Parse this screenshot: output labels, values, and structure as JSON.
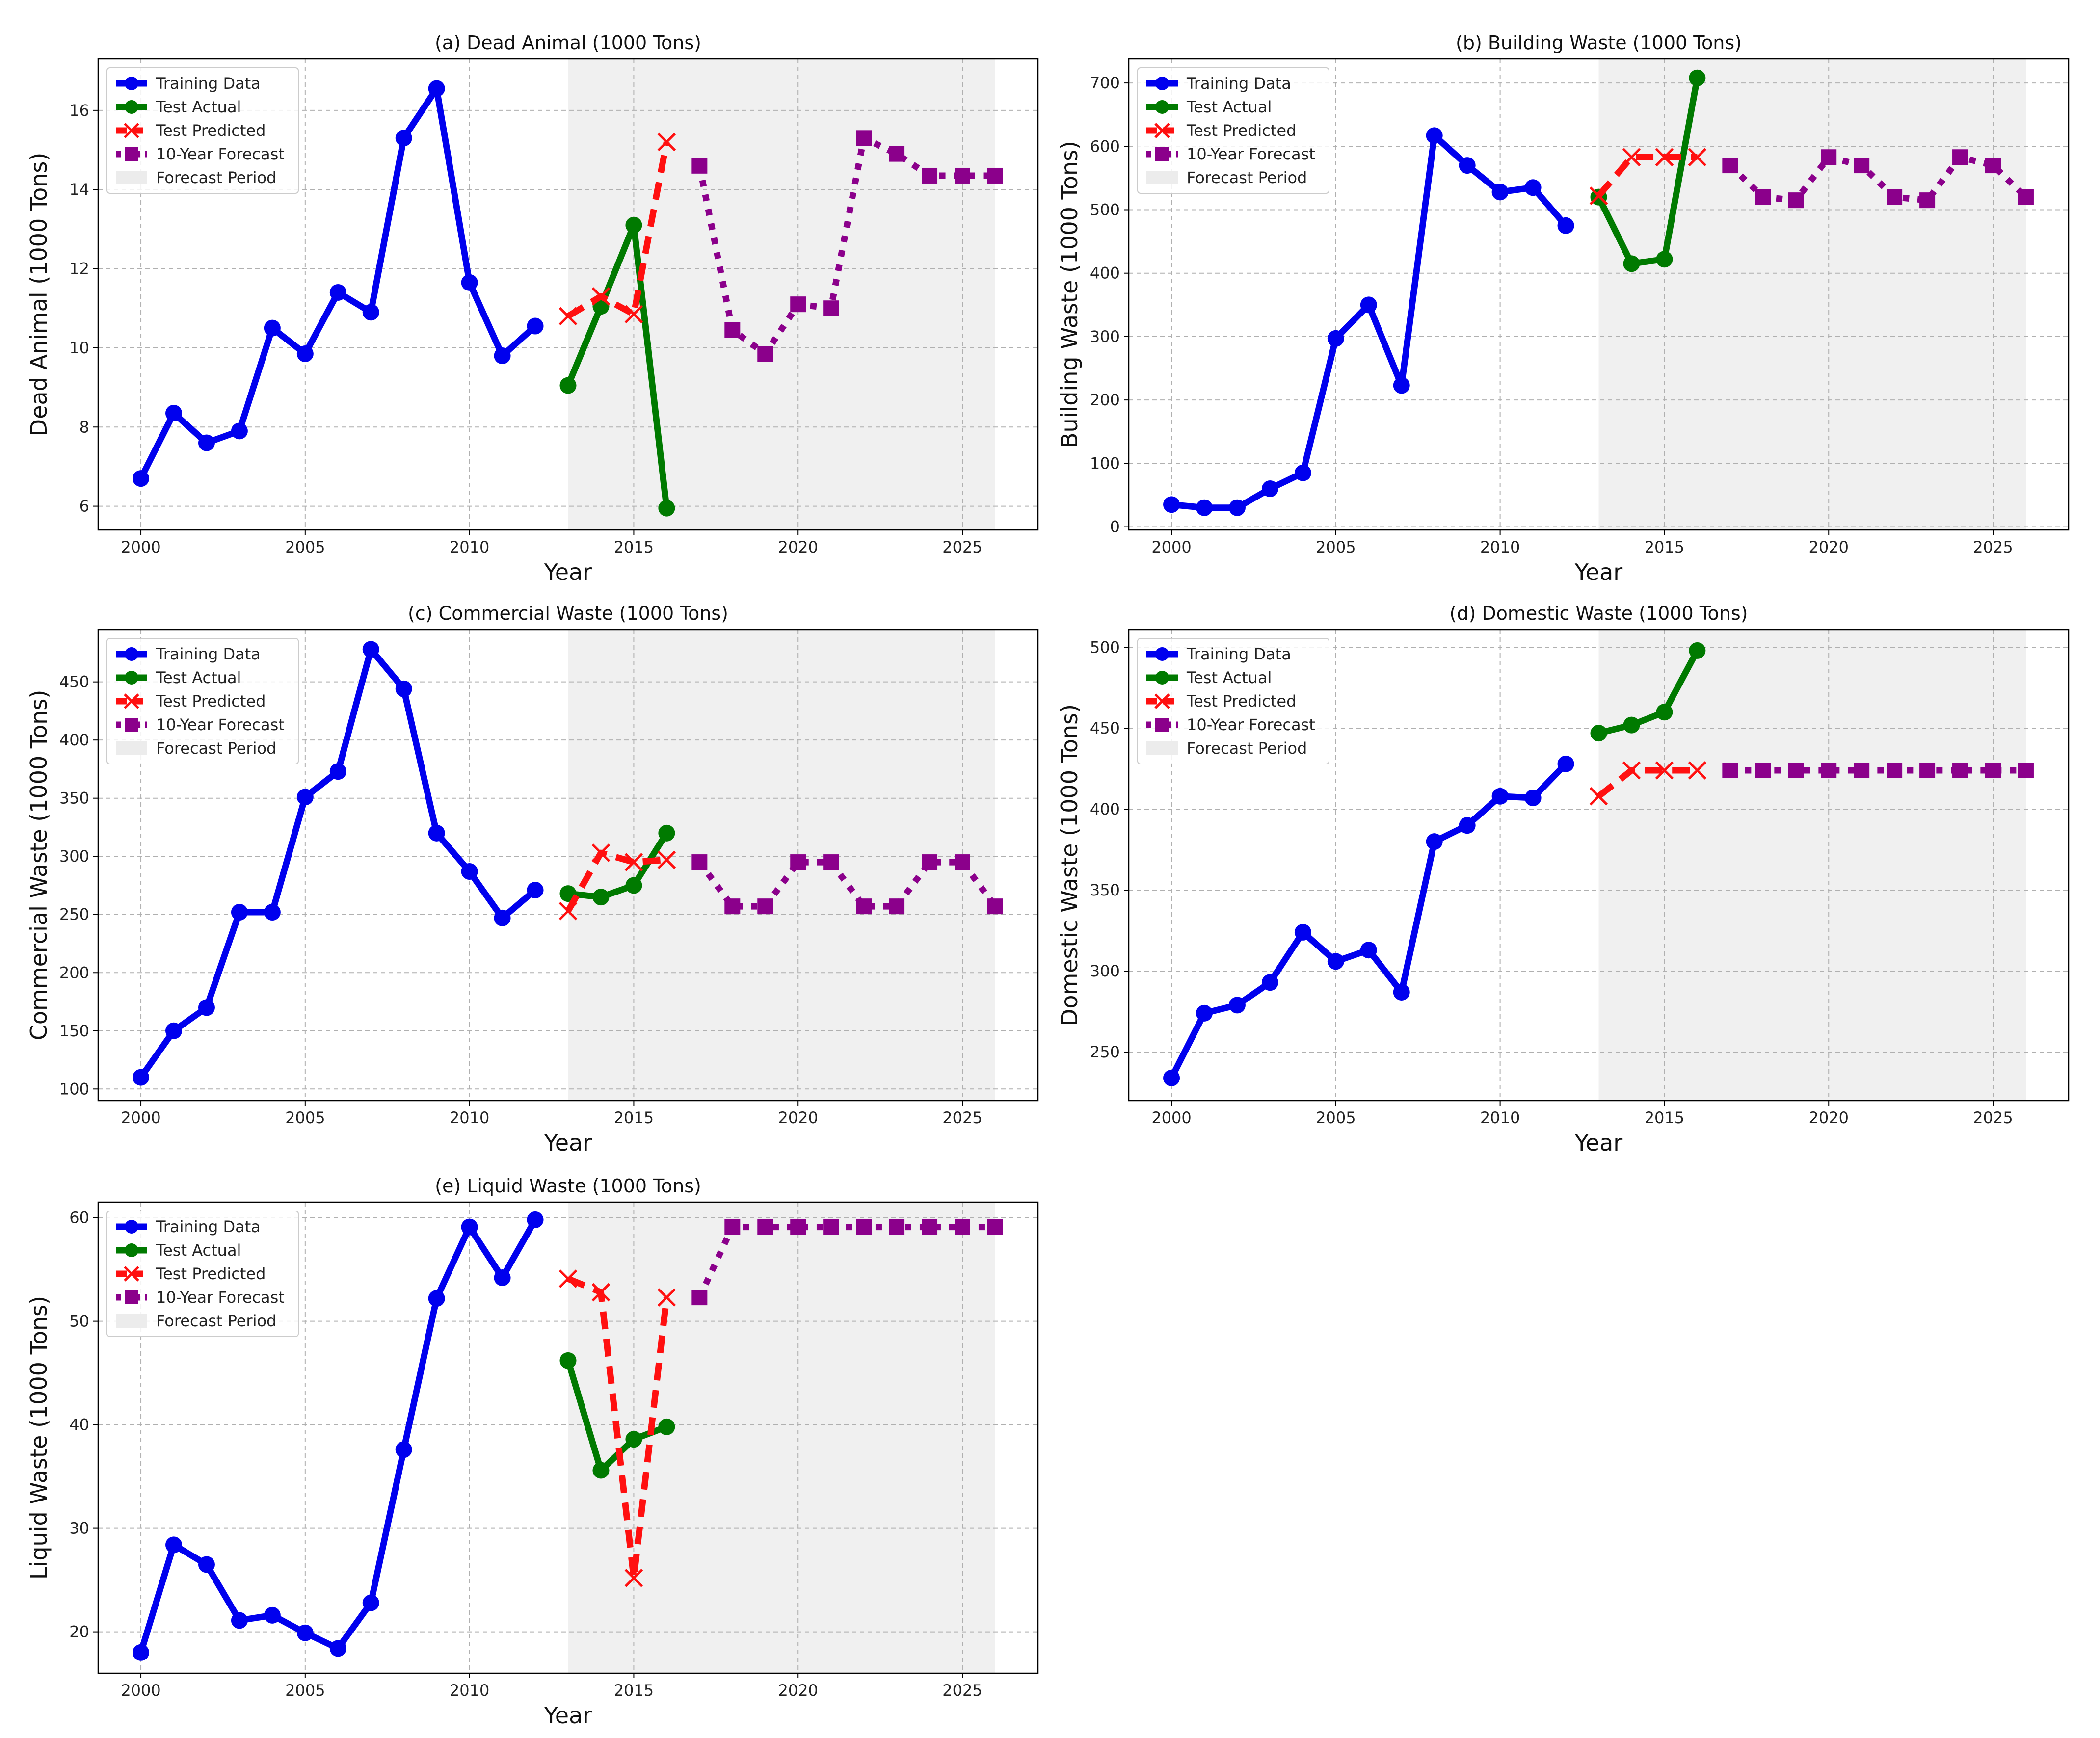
{
  "chart_data": [
    {
      "type": "line",
      "title": "(a) Dead Animal (1000 Tons)",
      "xlabel": "Year",
      "ylabel": "Dead Animal (1000 Tons)",
      "xlim": [
        1998.7,
        2027.3
      ],
      "ylim": [
        5.4,
        17.3
      ],
      "xticks": [
        2000,
        2005,
        2010,
        2015,
        2020,
        2025
      ],
      "yticks": [
        6,
        8,
        10,
        12,
        14,
        16
      ],
      "forecast_period": [
        2013,
        2026
      ],
      "series": [
        {
          "name": "Training Data",
          "x": [
            2000,
            2001,
            2002,
            2003,
            2004,
            2005,
            2006,
            2007,
            2008,
            2009,
            2010,
            2011,
            2012
          ],
          "values": [
            6.7,
            8.35,
            7.6,
            7.9,
            10.5,
            9.85,
            11.4,
            10.9,
            15.3,
            16.55,
            11.65,
            9.8,
            10.55
          ]
        },
        {
          "name": "Test Actual",
          "x": [
            2013,
            2014,
            2015,
            2016
          ],
          "values": [
            9.05,
            11.05,
            13.1,
            5.95
          ]
        },
        {
          "name": "Test Predicted",
          "x": [
            2013,
            2014,
            2015,
            2016
          ],
          "values": [
            10.8,
            11.3,
            10.85,
            15.2
          ]
        },
        {
          "name": "10-Year Forecast",
          "x": [
            2017,
            2018,
            2019,
            2020,
            2021,
            2022,
            2023,
            2024,
            2025,
            2026
          ],
          "values": [
            14.6,
            10.45,
            9.85,
            11.1,
            11.0,
            15.3,
            14.9,
            14.35,
            14.35,
            14.35
          ]
        }
      ],
      "legend": [
        "Training Data",
        "Test Actual",
        "Test Predicted",
        "10-Year Forecast",
        "Forecast Period"
      ]
    },
    {
      "type": "line",
      "title": "(b) Building Waste (1000 Tons)",
      "xlabel": "Year",
      "ylabel": "Building Waste (1000 Tons)",
      "xlim": [
        1998.7,
        2027.3
      ],
      "ylim": [
        -5,
        738
      ],
      "xticks": [
        2000,
        2005,
        2010,
        2015,
        2020,
        2025
      ],
      "yticks": [
        0,
        100,
        200,
        300,
        400,
        500,
        600,
        700
      ],
      "forecast_period": [
        2013,
        2026
      ],
      "series": [
        {
          "name": "Training Data",
          "x": [
            2000,
            2001,
            2002,
            2003,
            2004,
            2005,
            2006,
            2007,
            2008,
            2009,
            2010,
            2011,
            2012
          ],
          "values": [
            35,
            30,
            30,
            60,
            85,
            297,
            350,
            223,
            617,
            570,
            528,
            535,
            475
          ]
        },
        {
          "name": "Test Actual",
          "x": [
            2013,
            2014,
            2015,
            2016
          ],
          "values": [
            520,
            415,
            422,
            708
          ]
        },
        {
          "name": "Test Predicted",
          "x": [
            2013,
            2014,
            2015,
            2016
          ],
          "values": [
            522,
            583,
            583,
            583
          ]
        },
        {
          "name": "10-Year Forecast",
          "x": [
            2017,
            2018,
            2019,
            2020,
            2021,
            2022,
            2023,
            2024,
            2025,
            2026
          ],
          "values": [
            570,
            520,
            515,
            583,
            570,
            520,
            515,
            583,
            570,
            520
          ]
        }
      ],
      "legend": [
        "Training Data",
        "Test Actual",
        "Test Predicted",
        "10-Year Forecast",
        "Forecast Period"
      ]
    },
    {
      "type": "line",
      "title": "(c) Commercial Waste (1000 Tons)",
      "xlabel": "Year",
      "ylabel": "Commercial Waste (1000 Tons)",
      "xlim": [
        1998.7,
        2027.3
      ],
      "ylim": [
        90,
        495
      ],
      "xticks": [
        2000,
        2005,
        2010,
        2015,
        2020,
        2025
      ],
      "yticks": [
        100,
        150,
        200,
        250,
        300,
        350,
        400,
        450
      ],
      "forecast_period": [
        2013,
        2026
      ],
      "series": [
        {
          "name": "Training Data",
          "x": [
            2000,
            2001,
            2002,
            2003,
            2004,
            2005,
            2006,
            2007,
            2008,
            2009,
            2010,
            2011,
            2012
          ],
          "values": [
            110,
            150,
            170,
            252,
            252,
            351,
            373,
            478,
            444,
            320,
            287,
            247,
            271
          ]
        },
        {
          "name": "Test Actual",
          "x": [
            2013,
            2014,
            2015,
            2016
          ],
          "values": [
            268,
            265,
            275,
            320
          ]
        },
        {
          "name": "Test Predicted",
          "x": [
            2013,
            2014,
            2015,
            2016
          ],
          "values": [
            253,
            303,
            295,
            297
          ]
        },
        {
          "name": "10-Year Forecast",
          "x": [
            2017,
            2018,
            2019,
            2020,
            2021,
            2022,
            2023,
            2024,
            2025,
            2026
          ],
          "values": [
            295,
            257,
            257,
            295,
            295,
            257,
            257,
            295,
            295,
            257
          ]
        }
      ],
      "legend": [
        "Training Data",
        "Test Actual",
        "Test Predicted",
        "10-Year Forecast",
        "Forecast Period"
      ]
    },
    {
      "type": "line",
      "title": "(d) Domestic Waste (1000 Tons)",
      "xlabel": "Year",
      "ylabel": "Domestic Waste (1000 Tons)",
      "xlim": [
        1998.7,
        2027.3
      ],
      "ylim": [
        220,
        511
      ],
      "xticks": [
        2000,
        2005,
        2010,
        2015,
        2020,
        2025
      ],
      "yticks": [
        250,
        300,
        350,
        400,
        450,
        500
      ],
      "forecast_period": [
        2013,
        2026
      ],
      "series": [
        {
          "name": "Training Data",
          "x": [
            2000,
            2001,
            2002,
            2003,
            2004,
            2005,
            2006,
            2007,
            2008,
            2009,
            2010,
            2011,
            2012
          ],
          "values": [
            234,
            274,
            279,
            293,
            324,
            306,
            313,
            287,
            380,
            390,
            408,
            407,
            428
          ]
        },
        {
          "name": "Test Actual",
          "x": [
            2013,
            2014,
            2015,
            2016
          ],
          "values": [
            447,
            452,
            460,
            498
          ]
        },
        {
          "name": "Test Predicted",
          "x": [
            2013,
            2014,
            2015,
            2016
          ],
          "values": [
            408,
            424,
            424,
            424
          ]
        },
        {
          "name": "10-Year Forecast",
          "x": [
            2017,
            2018,
            2019,
            2020,
            2021,
            2022,
            2023,
            2024,
            2025,
            2026
          ],
          "values": [
            424,
            424,
            424,
            424,
            424,
            424,
            424,
            424,
            424,
            424
          ]
        }
      ],
      "legend": [
        "Training Data",
        "Test Actual",
        "Test Predicted",
        "10-Year Forecast",
        "Forecast Period"
      ]
    },
    {
      "type": "line",
      "title": "(e) Liquid Waste (1000 Tons)",
      "xlabel": "Year",
      "ylabel": "Liquid Waste (1000 Tons)",
      "xlim": [
        1998.7,
        2027.3
      ],
      "ylim": [
        16,
        61.5
      ],
      "xticks": [
        2000,
        2005,
        2010,
        2015,
        2020,
        2025
      ],
      "yticks": [
        20,
        30,
        40,
        50,
        60
      ],
      "forecast_period": [
        2013,
        2026
      ],
      "series": [
        {
          "name": "Training Data",
          "x": [
            2000,
            2001,
            2002,
            2003,
            2004,
            2005,
            2006,
            2007,
            2008,
            2009,
            2010,
            2011,
            2012
          ],
          "values": [
            18.0,
            28.4,
            26.5,
            21.1,
            21.6,
            19.9,
            18.4,
            22.8,
            37.6,
            52.2,
            59.1,
            54.2,
            59.8
          ]
        },
        {
          "name": "Test Actual",
          "x": [
            2013,
            2014,
            2015,
            2016
          ],
          "values": [
            46.2,
            35.6,
            38.6,
            39.8
          ]
        },
        {
          "name": "Test Predicted",
          "x": [
            2013,
            2014,
            2015,
            2016
          ],
          "values": [
            54.1,
            52.8,
            25.2,
            52.3
          ]
        },
        {
          "name": "10-Year Forecast",
          "x": [
            2017,
            2018,
            2019,
            2020,
            2021,
            2022,
            2023,
            2024,
            2025,
            2026
          ],
          "values": [
            52.3,
            59.1,
            59.1,
            59.1,
            59.1,
            59.1,
            59.1,
            59.1,
            59.1,
            59.1
          ]
        }
      ],
      "legend": [
        "Training Data",
        "Test Actual",
        "Test Predicted",
        "10-Year Forecast",
        "Forecast Period"
      ]
    }
  ],
  "colors": {
    "training": "#0000ee",
    "test_actual": "#007a00",
    "test_predicted": "#ff1010",
    "forecast": "#8b008b",
    "forecast_period": "#f0f0f0"
  }
}
